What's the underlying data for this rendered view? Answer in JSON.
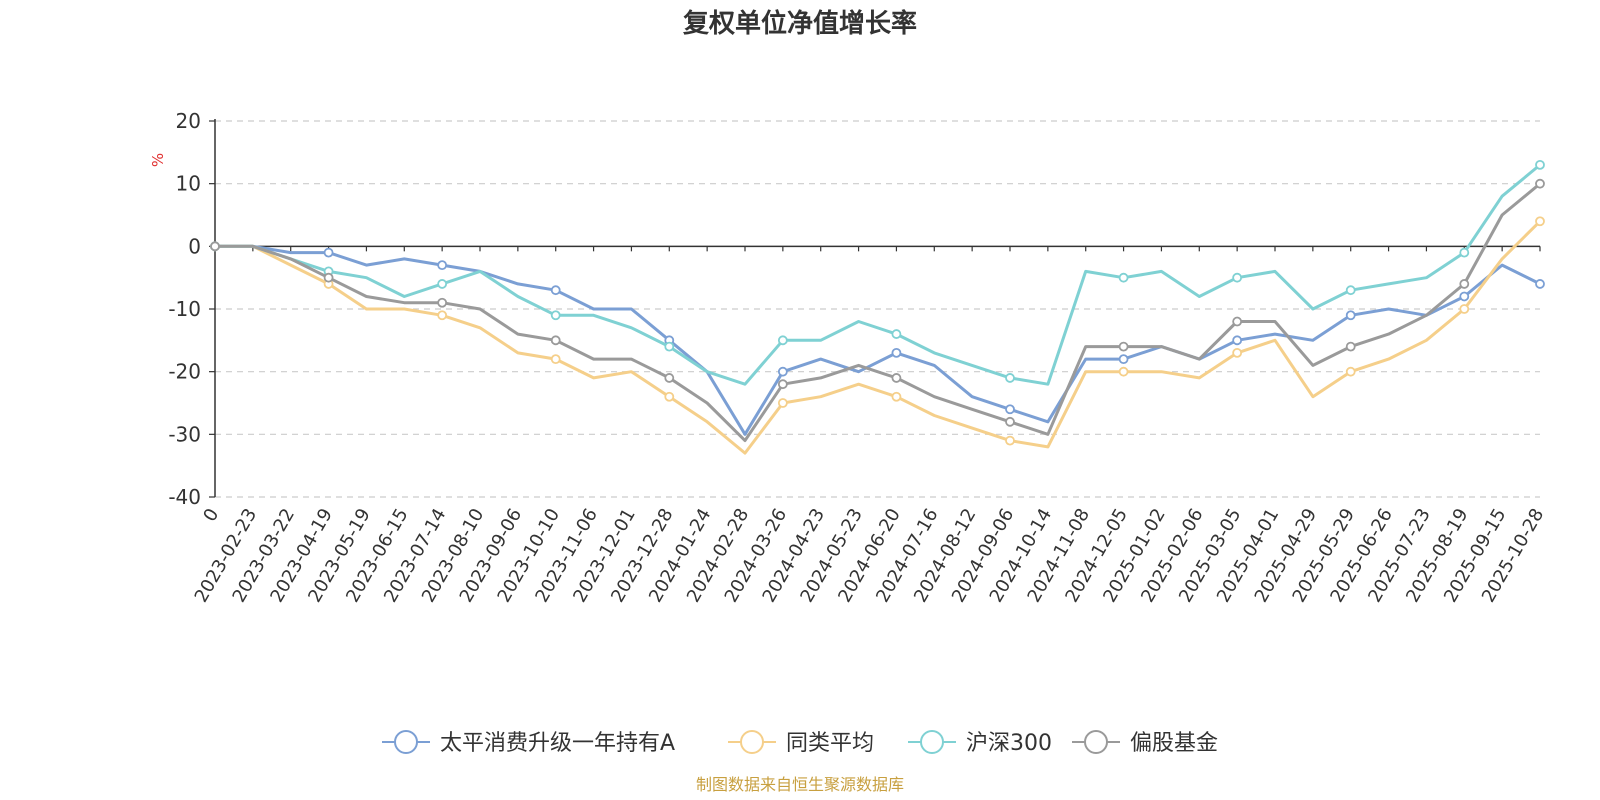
{
  "chart_data": {
    "type": "line",
    "title": "复权单位净值增长率",
    "ylabel": "%",
    "ylim": [
      -40,
      20
    ],
    "yticks": [
      20,
      10,
      0,
      -10,
      -20,
      -30,
      -40
    ],
    "categories": [
      "0",
      "2023-02-23",
      "2023-03-22",
      "2023-04-19",
      "2023-05-19",
      "2023-06-15",
      "2023-07-14",
      "2023-08-10",
      "2023-09-06",
      "2023-10-10",
      "2023-11-06",
      "2023-12-01",
      "2023-12-28",
      "2024-01-24",
      "2024-02-28",
      "2024-03-26",
      "2024-04-23",
      "2024-05-23",
      "2024-06-20",
      "2024-07-16",
      "2024-08-12",
      "2024-09-06",
      "2024-10-14",
      "2024-11-08",
      "2024-12-05",
      "2025-01-02",
      "2025-02-06",
      "2025-03-05",
      "2025-04-01",
      "2025-04-29",
      "2025-05-29",
      "2025-06-26",
      "2025-07-23",
      "2025-08-19",
      "2025-09-15",
      "2025-10-28"
    ],
    "series": [
      {
        "name": "太平消费升级一年持有A",
        "color": "#7b9fd4",
        "values": [
          0,
          0,
          -1,
          -1,
          -3,
          -2,
          -3,
          -4,
          -6,
          -7,
          -10,
          -10,
          -15,
          -20,
          -30,
          -20,
          -18,
          -20,
          -17,
          -19,
          -24,
          -26,
          -28,
          -18,
          -18,
          -16,
          -18,
          -15,
          -14,
          -15,
          -11,
          -10,
          -11,
          -8,
          -3,
          -6
        ]
      },
      {
        "name": "同类平均",
        "color": "#f5cf8a",
        "values": [
          0,
          0,
          -3,
          -6,
          -10,
          -10,
          -11,
          -13,
          -17,
          -18,
          -21,
          -20,
          -24,
          -28,
          -33,
          -25,
          -24,
          -22,
          -24,
          -27,
          -29,
          -31,
          -32,
          -20,
          -20,
          -20,
          -21,
          -17,
          -15,
          -24,
          -20,
          -18,
          -15,
          -10,
          -2,
          4
        ]
      },
      {
        "name": "沪深300",
        "color": "#7fd1d3",
        "values": [
          0,
          0,
          -2,
          -4,
          -5,
          -8,
          -6,
          -4,
          -8,
          -11,
          -11,
          -13,
          -16,
          -20,
          -22,
          -15,
          -15,
          -12,
          -14,
          -17,
          -19,
          -21,
          -22,
          -4,
          -5,
          -4,
          -8,
          -5,
          -4,
          -10,
          -7,
          -6,
          -5,
          -1,
          8,
          13
        ]
      },
      {
        "name": "偏股基金",
        "color": "#9a9a9a",
        "values": [
          0,
          0,
          -2,
          -5,
          -8,
          -9,
          -9,
          -10,
          -14,
          -15,
          -18,
          -18,
          -21,
          -25,
          -31,
          -22,
          -21,
          -19,
          -21,
          -24,
          -26,
          -28,
          -30,
          -16,
          -16,
          -16,
          -18,
          -12,
          -12,
          -19,
          -16,
          -14,
          -11,
          -6,
          5,
          10
        ]
      }
    ],
    "legend": "bottom"
  },
  "footer": {
    "source": "制图数据来自恒生聚源数据库"
  }
}
